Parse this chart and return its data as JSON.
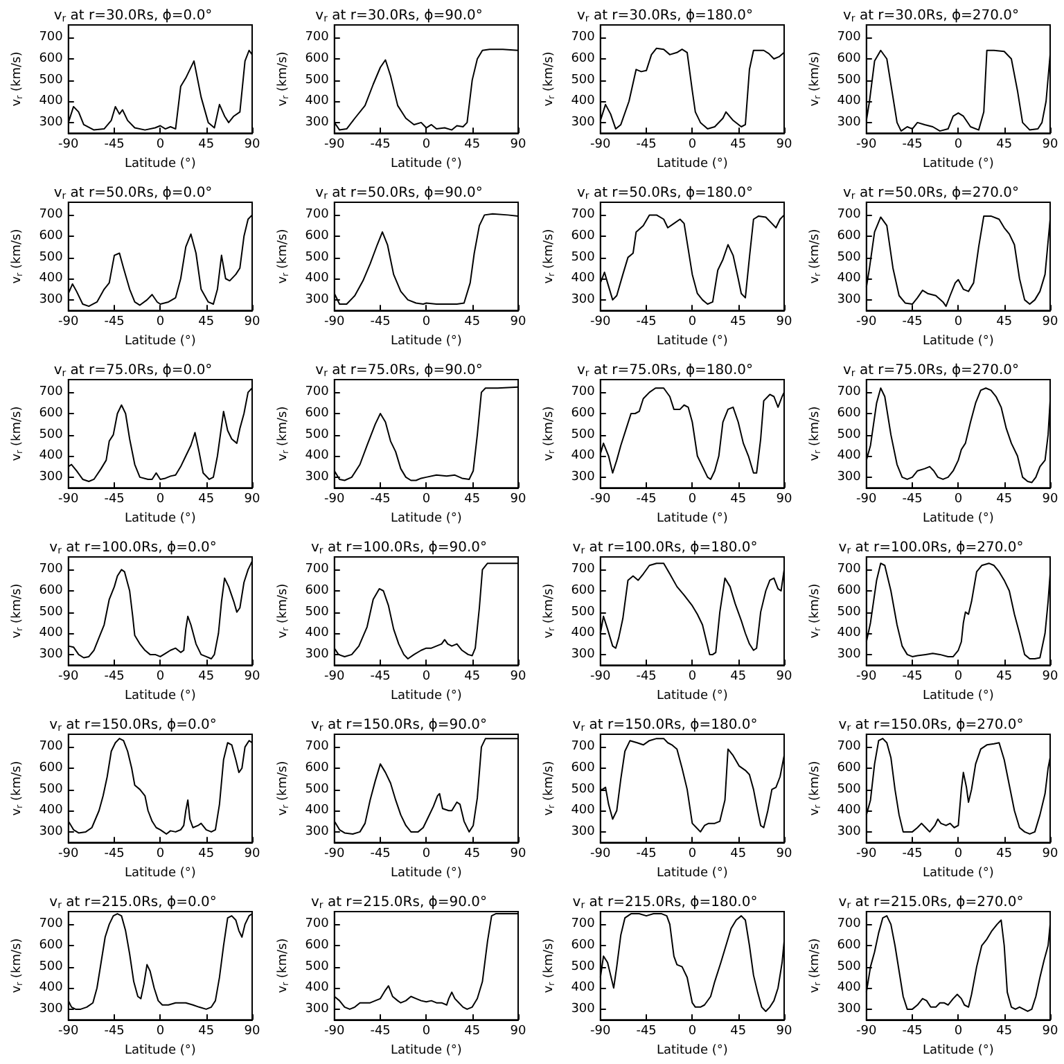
{
  "chart_data": [
    {
      "type": "line",
      "title": "v$_{r}$ at r=30.0Rs, ϕ=0.0°",
      "xlabel": "Latitude (°)",
      "ylabel": "v$_{r}$ (km/s)",
      "color": "#000000",
      "grid": false,
      "xlim": [
        -90,
        90
      ],
      "ylim": [
        250,
        760
      ],
      "xticks": [
        -90,
        -45,
        0,
        45,
        90
      ],
      "yticks": [
        300,
        400,
        500,
        600,
        700
      ],
      "x": [
        -90,
        -85,
        -80,
        -75,
        -65,
        -55,
        -48,
        -44,
        -40,
        -37,
        -32,
        -25,
        -15,
        -5,
        0,
        5,
        10,
        15,
        20,
        25,
        33,
        40,
        47,
        53,
        58,
        63,
        67,
        72,
        78,
        83,
        87,
        90
      ],
      "values": [
        300,
        375,
        350,
        290,
        265,
        270,
        310,
        375,
        340,
        360,
        310,
        275,
        265,
        275,
        285,
        270,
        280,
        270,
        470,
        510,
        590,
        420,
        300,
        275,
        385,
        330,
        300,
        330,
        350,
        590,
        640,
        620
      ]
    },
    {
      "type": "line",
      "title": "v$_{r}$ at r=30.0Rs, ϕ=90.0°",
      "xlabel": "Latitude (°)",
      "ylabel": "v$_{r}$ (km/s)",
      "color": "#000000",
      "grid": false,
      "xlim": [
        -90,
        90
      ],
      "ylim": [
        250,
        760
      ],
      "xticks": [
        -90,
        -45,
        0,
        45,
        90
      ],
      "yticks": [
        300,
        400,
        500,
        600,
        700
      ],
      "x": [
        -90,
        -85,
        -78,
        -70,
        -60,
        -52,
        -45,
        -40,
        -35,
        -28,
        -20,
        -12,
        -5,
        0,
        5,
        10,
        18,
        25,
        30,
        36,
        40,
        45,
        50,
        55,
        62,
        75,
        90
      ],
      "values": [
        300,
        265,
        270,
        320,
        380,
        480,
        560,
        595,
        520,
        380,
        320,
        290,
        300,
        275,
        290,
        270,
        275,
        265,
        285,
        280,
        300,
        500,
        600,
        640,
        645,
        645,
        640
      ]
    },
    {
      "type": "line",
      "title": "v$_{r}$ at r=30.0Rs, ϕ=180.0°",
      "xlabel": "Latitude (°)",
      "ylabel": "v$_{r}$ (km/s)",
      "color": "#000000",
      "grid": false,
      "xlim": [
        -90,
        90
      ],
      "ylim": [
        250,
        760
      ],
      "xticks": [
        -90,
        -45,
        0,
        45,
        90
      ],
      "yticks": [
        300,
        400,
        500,
        600,
        700
      ],
      "x": [
        -90,
        -85,
        -80,
        -75,
        -70,
        -62,
        -55,
        -50,
        -45,
        -40,
        -35,
        -28,
        -22,
        -15,
        -10,
        -5,
        0,
        3,
        8,
        15,
        22,
        30,
        33,
        40,
        48,
        52,
        56,
        60,
        70,
        75,
        80,
        85,
        90
      ],
      "values": [
        310,
        385,
        340,
        270,
        290,
        400,
        550,
        540,
        545,
        620,
        650,
        645,
        620,
        630,
        645,
        630,
        450,
        350,
        300,
        270,
        280,
        320,
        350,
        310,
        280,
        290,
        550,
        640,
        640,
        625,
        600,
        610,
        630
      ]
    },
    {
      "type": "line",
      "title": "v$_{r}$ at r=30.0Rs, ϕ=270.0°",
      "xlabel": "Latitude (°)",
      "ylabel": "v$_{r}$ (km/s)",
      "color": "#000000",
      "grid": false,
      "xlim": [
        -90,
        90
      ],
      "ylim": [
        250,
        760
      ],
      "xticks": [
        -90,
        -45,
        0,
        45,
        90
      ],
      "yticks": [
        300,
        400,
        500,
        600,
        700
      ],
      "x": [
        -90,
        -87,
        -82,
        -76,
        -70,
        -65,
        -60,
        -56,
        -50,
        -45,
        -40,
        -33,
        -25,
        -18,
        -10,
        -5,
        0,
        5,
        12,
        20,
        25,
        28,
        35,
        45,
        52,
        58,
        63,
        70,
        78,
        82,
        86,
        90
      ],
      "values": [
        310,
        400,
        590,
        640,
        600,
        450,
        300,
        260,
        280,
        270,
        300,
        290,
        280,
        260,
        270,
        330,
        345,
        330,
        280,
        265,
        350,
        640,
        640,
        635,
        600,
        450,
        300,
        265,
        270,
        300,
        400,
        620
      ]
    },
    {
      "type": "line",
      "title": "v$_{r}$ at r=50.0Rs, ϕ=0.0°",
      "xlabel": "Latitude (°)",
      "ylabel": "v$_{r}$ (km/s)",
      "color": "#000000",
      "grid": false,
      "xlim": [
        -90,
        90
      ],
      "ylim": [
        250,
        760
      ],
      "xticks": [
        -90,
        -45,
        0,
        45,
        90
      ],
      "yticks": [
        300,
        400,
        500,
        600,
        700
      ],
      "x": [
        -90,
        -86,
        -82,
        -76,
        -70,
        -62,
        -55,
        -50,
        -45,
        -40,
        -36,
        -30,
        -25,
        -20,
        -13,
        -8,
        -3,
        0,
        8,
        15,
        20,
        25,
        30,
        35,
        40,
        47,
        52,
        56,
        60,
        64,
        68,
        74,
        78,
        82,
        86,
        90
      ],
      "values": [
        330,
        375,
        340,
        280,
        270,
        290,
        350,
        380,
        510,
        520,
        450,
        350,
        290,
        275,
        300,
        325,
        290,
        280,
        290,
        310,
        400,
        550,
        610,
        520,
        350,
        290,
        280,
        350,
        510,
        400,
        390,
        420,
        450,
        600,
        680,
        700
      ]
    },
    {
      "type": "line",
      "title": "v$_{r}$ at r=50.0Rs, ϕ=90.0°",
      "xlabel": "Latitude (°)",
      "ylabel": "v$_{r}$ (km/s)",
      "color": "#000000",
      "grid": false,
      "xlim": [
        -90,
        90
      ],
      "ylim": [
        250,
        760
      ],
      "xticks": [
        -90,
        -45,
        0,
        45,
        90
      ],
      "yticks": [
        300,
        400,
        500,
        600,
        700
      ],
      "x": [
        -90,
        -85,
        -78,
        -70,
        -62,
        -55,
        -48,
        -43,
        -38,
        -32,
        -25,
        -18,
        -10,
        -3,
        0,
        10,
        20,
        30,
        37,
        43,
        47,
        52,
        57,
        65,
        80,
        90
      ],
      "values": [
        330,
        280,
        280,
        320,
        390,
        470,
        560,
        620,
        560,
        420,
        340,
        300,
        285,
        280,
        285,
        280,
        280,
        280,
        285,
        380,
        520,
        650,
        700,
        705,
        700,
        695
      ]
    },
    {
      "type": "line",
      "title": "v$_{r}$ at r=50.0Rs, ϕ=180.0°",
      "xlabel": "Latitude (°)",
      "ylabel": "v$_{r}$ (km/s)",
      "color": "#000000",
      "grid": false,
      "xlim": [
        -90,
        90
      ],
      "ylim": [
        250,
        760
      ],
      "xticks": [
        -90,
        -45,
        0,
        45,
        90
      ],
      "yticks": [
        300,
        400,
        500,
        600,
        700
      ],
      "x": [
        -90,
        -86,
        -83,
        -78,
        -74,
        -68,
        -63,
        -58,
        -55,
        -48,
        -42,
        -35,
        -28,
        -24,
        -18,
        -12,
        -8,
        -4,
        0,
        5,
        10,
        15,
        20,
        25,
        30,
        35,
        40,
        45,
        48,
        52,
        56,
        60,
        65,
        72,
        78,
        82,
        86,
        90
      ],
      "values": [
        380,
        430,
        380,
        300,
        320,
        420,
        500,
        520,
        620,
        650,
        700,
        700,
        680,
        640,
        660,
        680,
        660,
        540,
        420,
        330,
        300,
        280,
        290,
        440,
        490,
        560,
        510,
        400,
        330,
        310,
        500,
        680,
        695,
        690,
        660,
        640,
        680,
        700
      ]
    },
    {
      "type": "line",
      "title": "v$_{r}$ at r=50.0Rs, ϕ=270.0°",
      "xlabel": "Latitude (°)",
      "ylabel": "v$_{r}$ (km/s)",
      "color": "#000000",
      "grid": false,
      "xlim": [
        -90,
        90
      ],
      "ylim": [
        250,
        760
      ],
      "xticks": [
        -90,
        -45,
        0,
        45,
        90
      ],
      "yticks": [
        300,
        400,
        500,
        600,
        700
      ],
      "x": [
        -90,
        -87,
        -82,
        -76,
        -70,
        -64,
        -58,
        -52,
        -45,
        -40,
        -35,
        -30,
        -22,
        -15,
        -12,
        -8,
        -3,
        0,
        5,
        10,
        15,
        20,
        25,
        32,
        40,
        45,
        50,
        55,
        60,
        65,
        70,
        75,
        80,
        85,
        90
      ],
      "values": [
        360,
        450,
        620,
        690,
        650,
        450,
        320,
        285,
        280,
        310,
        345,
        330,
        320,
        290,
        270,
        320,
        380,
        395,
        350,
        340,
        380,
        550,
        695,
        695,
        680,
        640,
        610,
        560,
        400,
        300,
        280,
        300,
        340,
        420,
        680
      ]
    },
    {
      "type": "line",
      "title": "v$_{r}$ at r=75.0Rs, ϕ=0.0°",
      "xlabel": "Latitude (°)",
      "ylabel": "v$_{r}$ (km/s)",
      "color": "#000000",
      "grid": false,
      "xlim": [
        -90,
        90
      ],
      "ylim": [
        250,
        760
      ],
      "xticks": [
        -90,
        -45,
        0,
        45,
        90
      ],
      "yticks": [
        300,
        400,
        500,
        600,
        700
      ],
      "x": [
        -90,
        -87,
        -82,
        -76,
        -70,
        -65,
        -58,
        -53,
        -50,
        -46,
        -42,
        -38,
        -34,
        -30,
        -25,
        -20,
        -12,
        -8,
        -4,
        0,
        5,
        10,
        15,
        20,
        25,
        30,
        34,
        38,
        42,
        48,
        52,
        56,
        62,
        66,
        70,
        75,
        78,
        82,
        86,
        90
      ],
      "values": [
        350,
        360,
        330,
        290,
        280,
        290,
        340,
        380,
        470,
        500,
        600,
        640,
        600,
        480,
        360,
        300,
        290,
        290,
        320,
        290,
        295,
        305,
        310,
        350,
        400,
        450,
        510,
        420,
        320,
        290,
        300,
        400,
        610,
        520,
        480,
        460,
        530,
        600,
        700,
        720
      ]
    },
    {
      "type": "line",
      "title": "v$_{r}$ at r=75.0Rs, ϕ=90.0°",
      "xlabel": "Latitude (°)",
      "ylabel": "v$_{r}$ (km/s)",
      "color": "#000000",
      "grid": false,
      "xlim": [
        -90,
        90
      ],
      "ylim": [
        250,
        760
      ],
      "xticks": [
        -90,
        -45,
        0,
        45,
        90
      ],
      "yticks": [
        300,
        400,
        500,
        600,
        700
      ],
      "x": [
        -90,
        -85,
        -80,
        -73,
        -65,
        -58,
        -50,
        -45,
        -40,
        -35,
        -30,
        -25,
        -20,
        -15,
        -10,
        -5,
        0,
        10,
        20,
        28,
        35,
        42,
        46,
        50,
        54,
        58,
        70,
        90
      ],
      "values": [
        330,
        290,
        285,
        300,
        360,
        450,
        550,
        600,
        560,
        470,
        420,
        340,
        300,
        285,
        285,
        295,
        300,
        310,
        305,
        310,
        295,
        290,
        330,
        500,
        700,
        720,
        720,
        725
      ]
    },
    {
      "type": "line",
      "title": "v$_{r}$ at r=75.0Rs, ϕ=180.0°",
      "xlabel": "Latitude (°)",
      "ylabel": "v$_{r}$ (km/s)",
      "color": "#000000",
      "grid": false,
      "xlim": [
        -90,
        90
      ],
      "ylim": [
        250,
        760
      ],
      "xticks": [
        -90,
        -45,
        0,
        45,
        90
      ],
      "yticks": [
        300,
        400,
        500,
        600,
        700
      ],
      "x": [
        -90,
        -87,
        -82,
        -78,
        -74,
        -70,
        -64,
        -60,
        -56,
        -52,
        -48,
        -42,
        -36,
        -28,
        -22,
        -18,
        -12,
        -8,
        -4,
        0,
        5,
        10,
        15,
        18,
        22,
        26,
        30,
        35,
        40,
        45,
        50,
        55,
        60,
        63,
        67,
        70,
        76,
        80,
        84,
        88,
        90
      ],
      "values": [
        410,
        460,
        400,
        320,
        380,
        450,
        540,
        600,
        600,
        610,
        670,
        700,
        720,
        720,
        680,
        620,
        620,
        640,
        630,
        560,
        400,
        350,
        300,
        290,
        330,
        400,
        560,
        620,
        630,
        560,
        460,
        400,
        320,
        320,
        480,
        660,
        690,
        680,
        630,
        680,
        700
      ]
    },
    {
      "type": "line",
      "title": "v$_{r}$ at r=75.0Rs, ϕ=270.0°",
      "xlabel": "Latitude (°)",
      "ylabel": "v$_{r}$ (km/s)",
      "color": "#000000",
      "grid": false,
      "xlim": [
        -90,
        90
      ],
      "ylim": [
        250,
        760
      ],
      "xticks": [
        -90,
        -45,
        0,
        45,
        90
      ],
      "yticks": [
        300,
        400,
        500,
        600,
        700
      ],
      "x": [
        -90,
        -86,
        -80,
        -76,
        -72,
        -66,
        -60,
        -55,
        -50,
        -45,
        -40,
        -33,
        -28,
        -24,
        -20,
        -15,
        -10,
        -5,
        0,
        3,
        7,
        12,
        17,
        22,
        27,
        32,
        37,
        42,
        47,
        52,
        58,
        63,
        68,
        72,
        76,
        80,
        85,
        88,
        90
      ],
      "values": [
        380,
        450,
        650,
        720,
        680,
        500,
        360,
        300,
        290,
        300,
        330,
        340,
        350,
        330,
        300,
        290,
        300,
        330,
        380,
        430,
        460,
        560,
        650,
        710,
        720,
        710,
        680,
        630,
        530,
        460,
        400,
        300,
        280,
        275,
        300,
        350,
        380,
        500,
        660
      ]
    },
    {
      "type": "line",
      "title": "v$_{r}$ at r=100.0Rs, ϕ=0.0°",
      "xlabel": "Latitude (°)",
      "ylabel": "v$_{r}$ (km/s)",
      "color": "#000000",
      "grid": false,
      "xlim": [
        -90,
        90
      ],
      "ylim": [
        250,
        760
      ],
      "xticks": [
        -90,
        -45,
        0,
        45,
        90
      ],
      "yticks": [
        300,
        400,
        500,
        600,
        700
      ],
      "x": [
        -90,
        -85,
        -80,
        -75,
        -70,
        -65,
        -60,
        -55,
        -50,
        -45,
        -42,
        -38,
        -35,
        -30,
        -27,
        -25,
        -20,
        -15,
        -10,
        -5,
        0,
        5,
        10,
        15,
        20,
        23,
        25,
        27,
        30,
        35,
        40,
        45,
        50,
        53,
        57,
        60,
        63,
        67,
        72,
        75,
        78,
        82,
        86,
        90
      ],
      "values": [
        340,
        335,
        300,
        285,
        290,
        320,
        380,
        440,
        560,
        620,
        670,
        700,
        690,
        600,
        480,
        390,
        350,
        320,
        300,
        300,
        290,
        305,
        320,
        330,
        310,
        320,
        420,
        480,
        440,
        350,
        300,
        290,
        280,
        300,
        400,
        550,
        660,
        620,
        550,
        500,
        520,
        640,
        700,
        740
      ]
    },
    {
      "type": "line",
      "title": "v$_{r}$ at r=100.0Rs, ϕ=90.0°",
      "xlabel": "Latitude (°)",
      "ylabel": "v$_{r}$ (km/s)",
      "color": "#000000",
      "grid": false,
      "xlim": [
        -90,
        90
      ],
      "ylim": [
        250,
        760
      ],
      "xticks": [
        -90,
        -45,
        0,
        45,
        90
      ],
      "yticks": [
        300,
        400,
        500,
        600,
        700
      ],
      "x": [
        -90,
        -86,
        -80,
        -73,
        -66,
        -58,
        -52,
        -46,
        -42,
        -37,
        -32,
        -27,
        -22,
        -18,
        -12,
        -5,
        0,
        5,
        10,
        15,
        18,
        21,
        25,
        30,
        35,
        41,
        45,
        48,
        52,
        55,
        60,
        75,
        90
      ],
      "values": [
        330,
        300,
        290,
        300,
        340,
        430,
        560,
        610,
        600,
        530,
        420,
        350,
        300,
        280,
        300,
        320,
        330,
        330,
        340,
        350,
        370,
        350,
        340,
        350,
        320,
        300,
        295,
        330,
        520,
        700,
        730,
        730,
        730
      ]
    },
    {
      "type": "line",
      "title": "v$_{r}$ at r=100.0Rs, ϕ=180.0°",
      "xlabel": "Latitude (°)",
      "ylabel": "v$_{r}$ (km/s)",
      "color": "#000000",
      "grid": false,
      "xlim": [
        -90,
        90
      ],
      "ylim": [
        250,
        760
      ],
      "xticks": [
        -90,
        -45,
        0,
        45,
        90
      ],
      "yticks": [
        300,
        400,
        500,
        600,
        700
      ],
      "x": [
        -90,
        -87,
        -83,
        -78,
        -75,
        -72,
        -68,
        -63,
        -58,
        -53,
        -48,
        -42,
        -35,
        -28,
        -22,
        -15,
        -8,
        0,
        5,
        10,
        14,
        17,
        20,
        23,
        27,
        32,
        37,
        42,
        48,
        52,
        56,
        60,
        63,
        67,
        72,
        76,
        80,
        84,
        87,
        90
      ],
      "values": [
        400,
        480,
        420,
        340,
        330,
        380,
        470,
        650,
        670,
        650,
        680,
        720,
        730,
        730,
        680,
        620,
        580,
        530,
        490,
        440,
        360,
        300,
        300,
        310,
        500,
        660,
        620,
        540,
        460,
        400,
        350,
        320,
        330,
        500,
        600,
        650,
        660,
        610,
        600,
        700
      ]
    },
    {
      "type": "line",
      "title": "v$_{r}$ at r=100.0Rs, ϕ=270.0°",
      "xlabel": "Latitude (°)",
      "ylabel": "v$_{r}$ (km/s)",
      "color": "#000000",
      "grid": false,
      "xlim": [
        -90,
        90
      ],
      "ylim": [
        250,
        760
      ],
      "xticks": [
        -90,
        -45,
        0,
        45,
        90
      ],
      "yticks": [
        300,
        400,
        500,
        600,
        700
      ],
      "x": [
        -90,
        -86,
        -80,
        -76,
        -72,
        -66,
        -60,
        -55,
        -50,
        -45,
        -40,
        -32,
        -25,
        -18,
        -10,
        -5,
        0,
        3,
        5,
        7,
        10,
        13,
        18,
        23,
        30,
        35,
        40,
        45,
        50,
        55,
        60,
        65,
        70,
        75,
        80,
        85,
        88,
        90
      ],
      "values": [
        360,
        450,
        650,
        730,
        720,
        600,
        440,
        340,
        300,
        290,
        295,
        300,
        305,
        300,
        290,
        290,
        320,
        360,
        450,
        500,
        490,
        550,
        690,
        720,
        730,
        720,
        690,
        650,
        600,
        490,
        400,
        300,
        280,
        280,
        285,
        400,
        550,
        680
      ]
    },
    {
      "type": "line",
      "title": "v$_{r}$ at r=150.0Rs, ϕ=0.0°",
      "xlabel": "Latitude (°)",
      "ylabel": "v$_{r}$ (km/s)",
      "color": "#000000",
      "grid": false,
      "xlim": [
        -90,
        90
      ],
      "ylim": [
        250,
        760
      ],
      "xticks": [
        -90,
        -45,
        0,
        45,
        90
      ],
      "yticks": [
        300,
        400,
        500,
        600,
        700
      ],
      "x": [
        -90,
        -85,
        -80,
        -73,
        -67,
        -60,
        -56,
        -52,
        -48,
        -44,
        -40,
        -36,
        -32,
        -28,
        -25,
        -20,
        -15,
        -12,
        -8,
        -4,
        0,
        3,
        6,
        10,
        15,
        20,
        23,
        25,
        27,
        29,
        32,
        37,
        40,
        45,
        50,
        54,
        58,
        62,
        66,
        70,
        74,
        77,
        80,
        83,
        87,
        90
      ],
      "values": [
        350,
        310,
        295,
        300,
        320,
        400,
        470,
        560,
        680,
        720,
        740,
        730,
        680,
        600,
        520,
        500,
        470,
        400,
        350,
        320,
        310,
        300,
        290,
        305,
        300,
        310,
        330,
        400,
        450,
        360,
        320,
        330,
        340,
        310,
        300,
        310,
        430,
        640,
        720,
        710,
        640,
        580,
        600,
        700,
        730,
        720
      ]
    },
    {
      "type": "line",
      "title": "v$_{r}$ at r=150.0Rs, ϕ=90.0°",
      "xlabel": "Latitude (°)",
      "ylabel": "v$_{r}$ (km/s)",
      "color": "#000000",
      "grid": false,
      "xlim": [
        -90,
        90
      ],
      "ylim": [
        250,
        760
      ],
      "xticks": [
        -90,
        -45,
        0,
        45,
        90
      ],
      "yticks": [
        300,
        400,
        500,
        600,
        700
      ],
      "x": [
        -90,
        -85,
        -80,
        -72,
        -65,
        -60,
        -55,
        -50,
        -45,
        -40,
        -35,
        -30,
        -25,
        -20,
        -15,
        -8,
        -3,
        2,
        7,
        11,
        13,
        16,
        22,
        25,
        30,
        33,
        37,
        42,
        46,
        50,
        54,
        58,
        70,
        90
      ],
      "values": [
        350,
        310,
        295,
        290,
        300,
        340,
        450,
        540,
        620,
        580,
        530,
        450,
        380,
        330,
        300,
        300,
        320,
        370,
        420,
        470,
        480,
        410,
        400,
        400,
        440,
        430,
        350,
        300,
        330,
        460,
        700,
        740,
        740,
        740
      ]
    },
    {
      "type": "line",
      "title": "v$_{r}$ at r=150.0Rs, ϕ=180.0°",
      "xlabel": "Latitude (°)",
      "ylabel": "v$_{r}$ (km/s)",
      "color": "#000000",
      "grid": false,
      "xlim": [
        -90,
        90
      ],
      "ylim": [
        250,
        760
      ],
      "xticks": [
        -90,
        -45,
        0,
        45,
        90
      ],
      "yticks": [
        300,
        400,
        500,
        600,
        700
      ],
      "x": [
        -90,
        -88,
        -85,
        -82,
        -78,
        -74,
        -70,
        -66,
        -61,
        -54,
        -48,
        -42,
        -35,
        -28,
        -24,
        -20,
        -15,
        -10,
        -5,
        0,
        4,
        8,
        12,
        16,
        22,
        27,
        32,
        35,
        40,
        46,
        52,
        56,
        60,
        64,
        67,
        70,
        74,
        78,
        82,
        86,
        90
      ],
      "values": [
        500,
        500,
        510,
        430,
        360,
        400,
        550,
        680,
        730,
        720,
        710,
        730,
        740,
        740,
        720,
        710,
        690,
        600,
        500,
        340,
        320,
        300,
        330,
        340,
        340,
        350,
        450,
        690,
        660,
        610,
        590,
        570,
        500,
        400,
        330,
        320,
        400,
        500,
        510,
        560,
        660
      ]
    },
    {
      "type": "line",
      "title": "v$_{r}$ at r=150.0Rs, ϕ=270.0°",
      "xlabel": "Latitude (°)",
      "ylabel": "v$_{r}$ (km/s)",
      "color": "#000000",
      "grid": false,
      "xlim": [
        -90,
        90
      ],
      "ylim": [
        250,
        760
      ],
      "xticks": [
        -90,
        -45,
        0,
        45,
        90
      ],
      "yticks": [
        300,
        400,
        500,
        600,
        700
      ],
      "x": [
        -90,
        -86,
        -82,
        -78,
        -74,
        -70,
        -66,
        -62,
        -58,
        -54,
        -50,
        -45,
        -40,
        -36,
        -32,
        -28,
        -23,
        -20,
        -17,
        -12,
        -8,
        -4,
        0,
        3,
        5,
        8,
        10,
        13,
        17,
        22,
        28,
        35,
        40,
        45,
        50,
        55,
        60,
        65,
        70,
        75,
        80,
        85,
        88,
        90
      ],
      "values": [
        380,
        450,
        620,
        730,
        740,
        720,
        650,
        500,
        380,
        300,
        300,
        300,
        320,
        340,
        320,
        300,
        330,
        360,
        340,
        330,
        340,
        320,
        330,
        500,
        580,
        510,
        440,
        500,
        620,
        690,
        710,
        715,
        720,
        640,
        520,
        400,
        320,
        300,
        290,
        300,
        380,
        480,
        600,
        650
      ]
    },
    {
      "type": "line",
      "title": "v$_{r}$ at r=215.0Rs, ϕ=0.0°",
      "xlabel": "Latitude (°)",
      "ylabel": "v$_{r}$ (km/s)",
      "color": "#000000",
      "grid": false,
      "xlim": [
        -90,
        90
      ],
      "ylim": [
        250,
        760
      ],
      "xticks": [
        -90,
        -45,
        0,
        45,
        90
      ],
      "yticks": [
        300,
        400,
        500,
        600,
        700
      ],
      "x": [
        -90,
        -87,
        -83,
        -78,
        -72,
        -66,
        -62,
        -58,
        -54,
        -50,
        -46,
        -42,
        -38,
        -34,
        -30,
        -26,
        -22,
        -19,
        -16,
        -13,
        -10,
        -6,
        -2,
        2,
        8,
        15,
        25,
        32,
        38,
        45,
        50,
        54,
        58,
        62,
        66,
        70,
        74,
        77,
        80,
        83,
        87,
        90
      ],
      "values": [
        340,
        310,
        300,
        300,
        310,
        330,
        400,
        520,
        640,
        700,
        740,
        750,
        740,
        670,
        560,
        430,
        360,
        350,
        420,
        510,
        480,
        400,
        340,
        320,
        320,
        330,
        330,
        320,
        310,
        300,
        310,
        340,
        450,
        600,
        730,
        740,
        720,
        670,
        640,
        700,
        740,
        750
      ]
    },
    {
      "type": "line",
      "title": "v$_{r}$ at r=215.0Rs, ϕ=90.0°",
      "xlabel": "Latitude (°)",
      "ylabel": "v$_{r}$ (km/s)",
      "color": "#000000",
      "grid": false,
      "xlim": [
        -90,
        90
      ],
      "ylim": [
        250,
        760
      ],
      "xticks": [
        -90,
        -45,
        0,
        45,
        90
      ],
      "yticks": [
        300,
        400,
        500,
        600,
        700
      ],
      "x": [
        -90,
        -85,
        -80,
        -75,
        -70,
        -65,
        -60,
        -55,
        -50,
        -45,
        -40,
        -37,
        -33,
        -28,
        -25,
        -20,
        -15,
        -10,
        -5,
        0,
        5,
        10,
        15,
        20,
        22,
        25,
        28,
        32,
        36,
        40,
        45,
        50,
        55,
        60,
        64,
        68,
        80,
        90
      ],
      "values": [
        360,
        340,
        310,
        300,
        310,
        330,
        330,
        330,
        340,
        350,
        390,
        410,
        360,
        340,
        330,
        340,
        360,
        350,
        340,
        335,
        340,
        330,
        330,
        320,
        350,
        380,
        350,
        330,
        310,
        300,
        310,
        350,
        430,
        620,
        740,
        750,
        750,
        750
      ]
    },
    {
      "type": "line",
      "title": "v$_{r}$ at r=215.0Rs, ϕ=180.0°",
      "xlabel": "Latitude (°)",
      "ylabel": "v$_{r}$ (km/s)",
      "color": "#000000",
      "grid": false,
      "xlim": [
        -90,
        90
      ],
      "ylim": [
        250,
        760
      ],
      "xticks": [
        -90,
        -45,
        0,
        45,
        90
      ],
      "yticks": [
        300,
        400,
        500,
        600,
        700
      ],
      "x": [
        -90,
        -87,
        -83,
        -80,
        -77,
        -74,
        -70,
        -66,
        -60,
        -52,
        -45,
        -38,
        -30,
        -25,
        -22,
        -18,
        -15,
        -10,
        -5,
        0,
        3,
        8,
        12,
        18,
        22,
        28,
        33,
        38,
        43,
        48,
        52,
        56,
        60,
        64,
        68,
        72,
        76,
        80,
        84,
        88,
        90
      ],
      "values": [
        450,
        550,
        520,
        460,
        400,
        500,
        650,
        730,
        750,
        750,
        740,
        750,
        750,
        740,
        700,
        550,
        510,
        500,
        450,
        330,
        310,
        310,
        320,
        360,
        430,
        520,
        600,
        680,
        720,
        740,
        720,
        600,
        460,
        380,
        310,
        290,
        310,
        340,
        400,
        520,
        620
      ]
    },
    {
      "type": "line",
      "title": "v$_{r}$ at r=215.0Rs, ϕ=270.0°",
      "xlabel": "Latitude (°)",
      "ylabel": "v$_{r}$ (km/s)",
      "color": "#000000",
      "grid": false,
      "xlim": [
        -90,
        90
      ],
      "ylim": [
        250,
        760
      ],
      "xticks": [
        -90,
        -45,
        0,
        45,
        90
      ],
      "yticks": [
        300,
        400,
        500,
        600,
        700
      ],
      "x": [
        -90,
        -86,
        -82,
        -78,
        -74,
        -70,
        -66,
        -62,
        -58,
        -54,
        -50,
        -45,
        -40,
        -35,
        -31,
        -27,
        -22,
        -18,
        -14,
        -10,
        -5,
        -1,
        3,
        6,
        10,
        13,
        18,
        23,
        28,
        33,
        38,
        42,
        45,
        48,
        52,
        56,
        60,
        64,
        68,
        72,
        76,
        80,
        84,
        88,
        90
      ],
      "values": [
        380,
        500,
        570,
        660,
        730,
        740,
        700,
        600,
        480,
        360,
        300,
        300,
        320,
        350,
        340,
        310,
        310,
        330,
        330,
        320,
        350,
        370,
        350,
        320,
        310,
        370,
        500,
        600,
        630,
        670,
        700,
        720,
        600,
        380,
        310,
        300,
        310,
        300,
        290,
        300,
        360,
        450,
        530,
        600,
        700
      ]
    }
  ]
}
